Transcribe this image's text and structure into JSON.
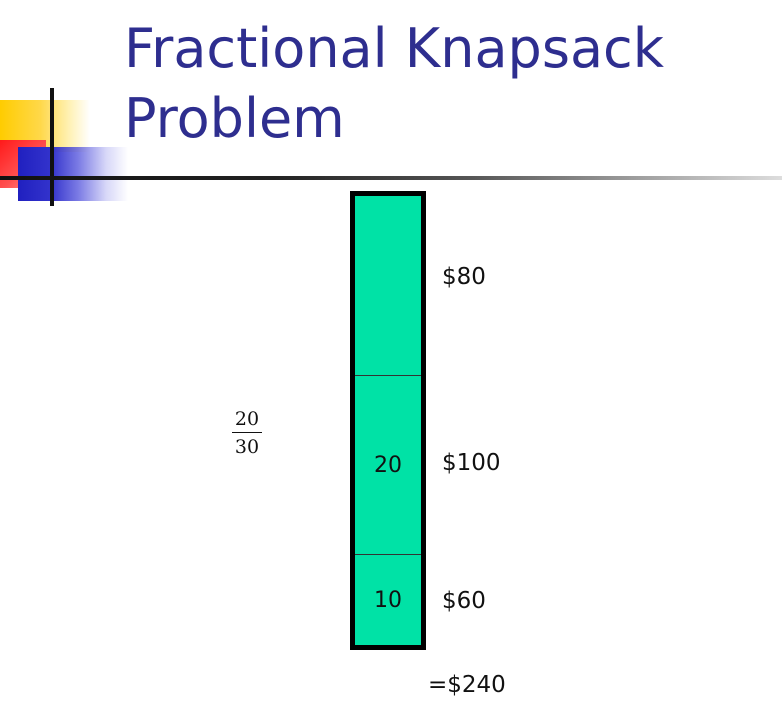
{
  "title": {
    "line1": "Fractional Knapsack",
    "line2": "Problem"
  },
  "colors": {
    "title": "#2e2e8f",
    "knapsack_fill": "#00e2a6",
    "knapsack_border": "#000000"
  },
  "fraction": {
    "numerator": "20",
    "denominator": "30"
  },
  "knapsack": {
    "segments": [
      {
        "label": "",
        "value": "$80"
      },
      {
        "label": "20",
        "value": "$100"
      },
      {
        "label": "10",
        "value": "$60"
      }
    ]
  },
  "total": "=$240"
}
